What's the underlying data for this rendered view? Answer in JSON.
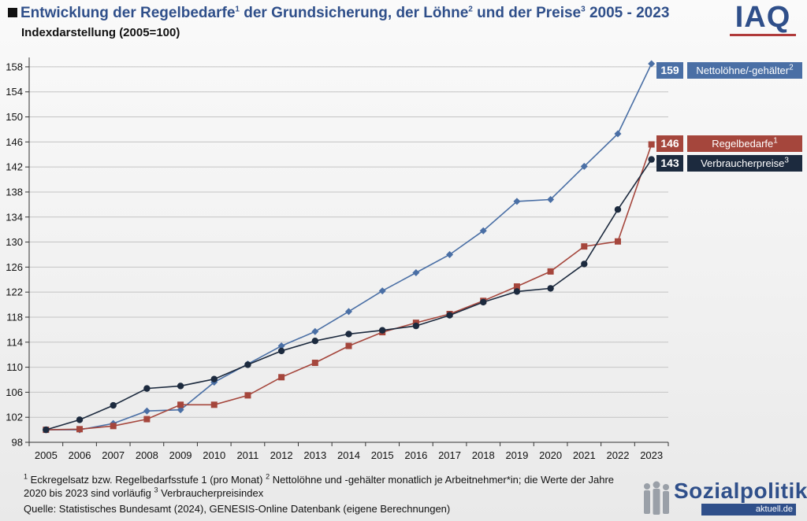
{
  "header": {
    "title_main": "Entwicklung der Regelbedarfe",
    "title_sup1": "1",
    "title_mid": " der Grundsicherung, der Löhne",
    "title_sup2": "2",
    "title_mid2": " und der Preise",
    "title_sup3": "3",
    "title_end": " 2005 - 2023",
    "subtitle": "Indexdarstellung (2005=100)"
  },
  "logo": {
    "text": "IAQ"
  },
  "chart_data": {
    "type": "line",
    "title": "Entwicklung der Regelbedarfe der Grundsicherung, der Löhne und der Preise 2005 - 2023",
    "subtitle": "Indexdarstellung (2005=100)",
    "x": [
      "2005",
      "2006",
      "2007",
      "2008",
      "2009",
      "2010",
      "2011",
      "2012",
      "2013",
      "2014",
      "2015",
      "2016",
      "2017",
      "2018",
      "2019",
      "2020",
      "2021",
      "2022",
      "2023"
    ],
    "yticks": [
      98,
      102,
      106,
      110,
      114,
      118,
      122,
      126,
      130,
      134,
      138,
      142,
      146,
      150,
      154,
      158
    ],
    "ylim": [
      98,
      159.5
    ],
    "grid": true,
    "series": [
      {
        "name": "Nettolöhne/-gehälter",
        "color": "#4a6fa5",
        "marker": "diamond",
        "end_label": "159",
        "values": [
          100,
          100,
          101,
          103,
          103.2,
          107.6,
          110.5,
          113.4,
          115.7,
          118.9,
          122.2,
          125.1,
          128,
          131.8,
          136.5,
          136.8,
          142.1,
          147.3,
          158.5
        ]
      },
      {
        "name": "Regelbedarfe",
        "color": "#a5463c",
        "marker": "square",
        "end_label": "146",
        "values": [
          100,
          100.1,
          100.6,
          101.7,
          104,
          104,
          105.5,
          108.4,
          110.7,
          113.4,
          115.6,
          117.1,
          118.5,
          120.6,
          122.9,
          125.3,
          129.3,
          130.1,
          145.6
        ]
      },
      {
        "name": "Verbraucherpreise",
        "color": "#1c2a3e",
        "marker": "circle",
        "end_label": "143",
        "values": [
          100,
          101.6,
          103.9,
          106.6,
          107,
          108.1,
          110.4,
          112.6,
          114.2,
          115.3,
          115.9,
          116.6,
          118.3,
          120.4,
          122.1,
          122.6,
          126.5,
          135.2,
          143.2
        ]
      }
    ]
  },
  "legend_labels": [
    {
      "text": "Nettolöhne/-gehälter",
      "sup": "2"
    },
    {
      "text": "Regelbedarfe",
      "sup": "1"
    },
    {
      "text": "Verbraucherpreise",
      "sup": "3"
    }
  ],
  "footnotes": {
    "n1": "1",
    "t1": " Eckregelsatz bzw. Regelbedarfsstufe 1 (pro Monat)  ",
    "n2": "2",
    "t2": " Nettolöhne und -gehälter monatlich je Arbeitnehmer*in; die Werte der Jahre 2020 bis 2023 sind vorläufig  ",
    "n3": "3",
    "t3": " Verbraucherpreisindex",
    "source": "Quelle: Statistisches Bundesamt (2024), GENESIS-Online Datenbank (eigene Berechnungen)"
  },
  "brand": {
    "main": "Sozialpolitik-",
    "sub": "aktuell.de"
  }
}
